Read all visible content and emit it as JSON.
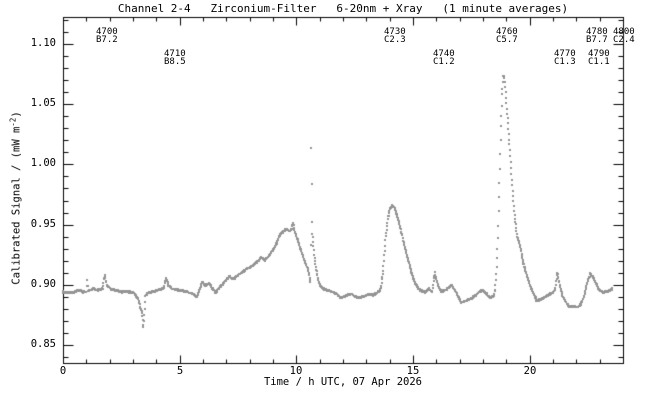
{
  "title": "Channel 2-4   Zirconium-Filter   6-20nm + Xray   (1 minute averages)",
  "axes": {
    "xlabel": "Time / h UTC, 07 Apr 2026",
    "ylabel_pre": "Calibrated Signal / (mW m",
    "ylabel_sup": "-2",
    "ylabel_post": ")"
  },
  "colors": {
    "background": "#ffffff",
    "axis": "#000000",
    "data": "#949494"
  },
  "chart_data": {
    "type": "scatter",
    "marker": "2x2px square dots, 1-minute cadence",
    "title": "Channel 2-4   Zirconium-Filter   6-20nm + Xray   (1 minute averages)",
    "xlabel": "Time / h UTC, 07 Apr 2026",
    "ylabel": "Calibrated Signal / (mW m^-2)",
    "xlim": [
      0,
      24
    ],
    "ylim": [
      0.835,
      1.1225
    ],
    "xticks_major": [
      0,
      5,
      10,
      15,
      20
    ],
    "xtick_labels": [
      "0",
      "5",
      "10",
      "15",
      "20"
    ],
    "x_minor_step": 1,
    "yticks_major": [
      0.85,
      0.9,
      0.95,
      1.0,
      1.05,
      1.1
    ],
    "ytick_labels": [
      "0.85",
      "0.90",
      "0.95",
      "1.00",
      "1.05",
      "1.10"
    ],
    "y_minor_step": 0.01,
    "grid": false,
    "annotations": [
      {
        "event": "4700",
        "class": "B7.2",
        "t": 1.37,
        "row": 0
      },
      {
        "event": "4710",
        "class": "B8.5",
        "t": 4.29,
        "row": 1
      },
      {
        "event": "4730",
        "class": "C2.3",
        "t": 13.71,
        "row": 0
      },
      {
        "event": "4740",
        "class": "C1.2",
        "t": 15.82,
        "row": 1
      },
      {
        "event": "4760",
        "class": "C5.7",
        "t": 18.51,
        "row": 0
      },
      {
        "event": "4770",
        "class": "C1.3",
        "t": 21.0,
        "row": 1
      },
      {
        "event": "4780",
        "class": "B7.7",
        "t": 22.37,
        "row": 0
      },
      {
        "event": "4790",
        "class": "C1.1",
        "t": 22.47,
        "row": 1
      },
      {
        "event": "4800",
        "class": "C2.4",
        "t": 23.53,
        "row": 0
      }
    ],
    "series": [
      {
        "name": "calibrated-signal-1min",
        "color": "#949494",
        "sample_minutes": 1,
        "keypoints": [
          [
            0.0,
            0.894
          ],
          [
            0.25,
            0.8935
          ],
          [
            0.5,
            0.894
          ],
          [
            0.7,
            0.8955
          ],
          [
            0.85,
            0.894
          ],
          [
            1.0,
            0.8945
          ],
          [
            1.03,
            0.904
          ],
          [
            1.07,
            0.895
          ],
          [
            1.3,
            0.897
          ],
          [
            1.5,
            0.8955
          ],
          [
            1.7,
            0.897
          ],
          [
            1.78,
            0.908
          ],
          [
            1.88,
            0.8995
          ],
          [
            2.05,
            0.8965
          ],
          [
            2.25,
            0.8955
          ],
          [
            2.5,
            0.894
          ],
          [
            2.75,
            0.8945
          ],
          [
            3.0,
            0.8935
          ],
          [
            3.12,
            0.8915
          ],
          [
            3.22,
            0.8885
          ],
          [
            3.3,
            0.882
          ],
          [
            3.38,
            0.8775
          ],
          [
            3.45,
            0.864
          ],
          [
            3.53,
            0.8905
          ],
          [
            3.65,
            0.8935
          ],
          [
            3.9,
            0.8945
          ],
          [
            4.15,
            0.896
          ],
          [
            4.33,
            0.8975
          ],
          [
            4.42,
            0.906
          ],
          [
            4.52,
            0.8995
          ],
          [
            4.7,
            0.8965
          ],
          [
            5.0,
            0.8955
          ],
          [
            5.3,
            0.894
          ],
          [
            5.55,
            0.8925
          ],
          [
            5.72,
            0.8895
          ],
          [
            5.88,
            0.897
          ],
          [
            5.97,
            0.9025
          ],
          [
            6.1,
            0.899
          ],
          [
            6.27,
            0.901
          ],
          [
            6.45,
            0.8955
          ],
          [
            6.55,
            0.8935
          ],
          [
            6.7,
            0.8975
          ],
          [
            6.85,
            0.9005
          ],
          [
            7.05,
            0.9055
          ],
          [
            7.15,
            0.9065
          ],
          [
            7.3,
            0.9045
          ],
          [
            7.5,
            0.908
          ],
          [
            7.7,
            0.9105
          ],
          [
            7.9,
            0.9135
          ],
          [
            8.1,
            0.9155
          ],
          [
            8.3,
            0.9185
          ],
          [
            8.5,
            0.9225
          ],
          [
            8.65,
            0.9205
          ],
          [
            8.8,
            0.9235
          ],
          [
            9.0,
            0.929
          ],
          [
            9.15,
            0.9345
          ],
          [
            9.3,
            0.9415
          ],
          [
            9.45,
            0.9445
          ],
          [
            9.6,
            0.9465
          ],
          [
            9.7,
            0.9445
          ],
          [
            9.8,
            0.9465
          ],
          [
            9.86,
            0.952
          ],
          [
            9.92,
            0.9445
          ],
          [
            10.05,
            0.9375
          ],
          [
            10.2,
            0.9285
          ],
          [
            10.35,
            0.9205
          ],
          [
            10.5,
            0.9125
          ],
          [
            10.58,
            0.9045
          ],
          [
            10.61,
            0.9005
          ],
          [
            10.633,
            1.0145
          ],
          [
            10.67,
            0.946
          ],
          [
            10.72,
            0.935
          ],
          [
            10.78,
            0.9225
          ],
          [
            10.85,
            0.9125
          ],
          [
            10.95,
            0.902
          ],
          [
            11.1,
            0.8975
          ],
          [
            11.3,
            0.8955
          ],
          [
            11.5,
            0.8945
          ],
          [
            11.7,
            0.8925
          ],
          [
            11.9,
            0.889
          ],
          [
            12.1,
            0.8905
          ],
          [
            12.3,
            0.8925
          ],
          [
            12.5,
            0.8905
          ],
          [
            12.7,
            0.889
          ],
          [
            12.9,
            0.8905
          ],
          [
            13.1,
            0.8925
          ],
          [
            13.3,
            0.8915
          ],
          [
            13.5,
            0.8935
          ],
          [
            13.62,
            0.897
          ],
          [
            13.72,
            0.9125
          ],
          [
            13.82,
            0.9375
          ],
          [
            13.92,
            0.9555
          ],
          [
            14.0,
            0.9625
          ],
          [
            14.1,
            0.966
          ],
          [
            14.2,
            0.9645
          ],
          [
            14.35,
            0.9555
          ],
          [
            14.5,
            0.9435
          ],
          [
            14.7,
            0.9275
          ],
          [
            14.9,
            0.9125
          ],
          [
            15.1,
            0.9005
          ],
          [
            15.3,
            0.8955
          ],
          [
            15.5,
            0.8935
          ],
          [
            15.68,
            0.8965
          ],
          [
            15.83,
            0.894
          ],
          [
            15.93,
            0.91
          ],
          [
            16.05,
            0.9005
          ],
          [
            16.2,
            0.8945
          ],
          [
            16.4,
            0.8955
          ],
          [
            16.65,
            0.9
          ],
          [
            16.85,
            0.894
          ],
          [
            17.05,
            0.8855
          ],
          [
            17.25,
            0.8865
          ],
          [
            17.5,
            0.8885
          ],
          [
            17.75,
            0.8925
          ],
          [
            17.95,
            0.8955
          ],
          [
            18.1,
            0.8935
          ],
          [
            18.3,
            0.889
          ],
          [
            18.45,
            0.8905
          ],
          [
            18.52,
            0.8955
          ],
          [
            18.58,
            0.9125
          ],
          [
            18.64,
            0.942
          ],
          [
            18.7,
            0.985
          ],
          [
            18.76,
            1.028
          ],
          [
            18.82,
            1.0595
          ],
          [
            18.87,
            1.0745
          ],
          [
            18.92,
            1.0715
          ],
          [
            18.98,
            1.056
          ],
          [
            19.05,
            1.038
          ],
          [
            19.15,
            1.0125
          ],
          [
            19.25,
            0.982
          ],
          [
            19.35,
            0.9575
          ],
          [
            19.47,
            0.9395
          ],
          [
            19.6,
            0.9315
          ],
          [
            19.72,
            0.9185
          ],
          [
            19.85,
            0.9095
          ],
          [
            20.0,
            0.9
          ],
          [
            20.15,
            0.8935
          ],
          [
            20.3,
            0.8865
          ],
          [
            20.45,
            0.8875
          ],
          [
            20.62,
            0.8895
          ],
          [
            20.8,
            0.8915
          ],
          [
            21.0,
            0.8935
          ],
          [
            21.1,
            0.8975
          ],
          [
            21.18,
            0.91
          ],
          [
            21.28,
            0.9005
          ],
          [
            21.4,
            0.891
          ],
          [
            21.55,
            0.8855
          ],
          [
            21.7,
            0.8815
          ],
          [
            21.85,
            0.8825
          ],
          [
            22.0,
            0.8815
          ],
          [
            22.15,
            0.8825
          ],
          [
            22.3,
            0.8885
          ],
          [
            22.45,
            0.9005
          ],
          [
            22.6,
            0.9095
          ],
          [
            22.72,
            0.9065
          ],
          [
            22.85,
            0.9005
          ],
          [
            23.0,
            0.8955
          ],
          [
            23.15,
            0.8935
          ],
          [
            23.35,
            0.8945
          ],
          [
            23.55,
            0.8965
          ]
        ]
      }
    ]
  }
}
